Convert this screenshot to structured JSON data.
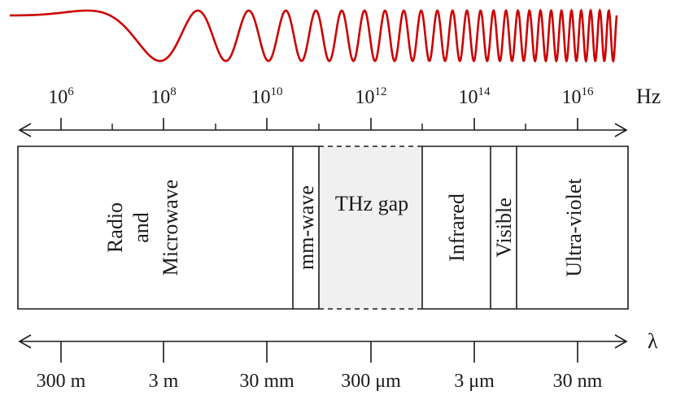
{
  "wave": {
    "color": "#cc0000"
  },
  "frequency_axis": {
    "unit": "Hz",
    "ticks": [
      {
        "base": "10",
        "exp": "6"
      },
      {
        "base": "10",
        "exp": "8"
      },
      {
        "base": "10",
        "exp": "10"
      },
      {
        "base": "10",
        "exp": "12"
      },
      {
        "base": "10",
        "exp": "14"
      },
      {
        "base": "10",
        "exp": "16"
      }
    ]
  },
  "bands": [
    {
      "lines": [
        "Radio",
        "and",
        "Microwave"
      ],
      "style": "solid"
    },
    {
      "lines": [
        "mm-wave"
      ],
      "style": "solid"
    },
    {
      "lines": [
        "THz gap"
      ],
      "style": "dashed",
      "fill": "#f0f0f0",
      "orientation": "horizontal"
    },
    {
      "lines": [
        "Infrared"
      ],
      "style": "solid"
    },
    {
      "lines": [
        "Visible"
      ],
      "style": "solid"
    },
    {
      "lines": [
        "Ultra-violet"
      ],
      "style": "solid"
    }
  ],
  "wavelength_axis": {
    "unit": "λ",
    "ticks": [
      "300 m",
      "3 m",
      "30 mm",
      "300 μm",
      "3 μm",
      "30 nm"
    ]
  }
}
